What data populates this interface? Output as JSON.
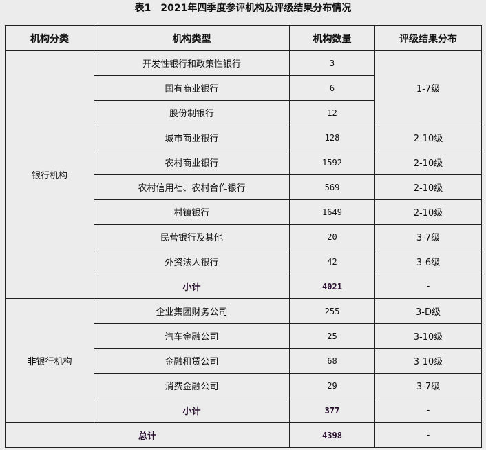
{
  "title": "表1　2021年四季度参评机构及评级结果分布情况",
  "headers": [
    "机构分类",
    "机构类型",
    "机构数量",
    "评级结果分布"
  ],
  "bank": {
    "category": "银行机构",
    "rows": [
      {
        "type": "开发性银行和政策性银行",
        "count": "3"
      },
      {
        "type": "国有商业银行",
        "count": "6"
      },
      {
        "type": "股份制银行",
        "count": "12"
      },
      {
        "type": "城市商业银行",
        "count": "128",
        "rating": "2-10级"
      },
      {
        "type": "农村商业银行",
        "count": "1592",
        "rating": "2-10级"
      },
      {
        "type": "农村信用社、农村合作银行",
        "count": "569",
        "rating": "2-10级"
      },
      {
        "type": "村镇银行",
        "count": "1649",
        "rating": "2-10级"
      },
      {
        "type": "民营银行及其他",
        "count": "20",
        "rating": "3-7级"
      },
      {
        "type": "外资法人银行",
        "count": "42",
        "rating": "3-6级"
      }
    ],
    "merged_rating": "1-7级",
    "subtotal_label": "小计",
    "subtotal_count": "4021",
    "subtotal_rating": "-"
  },
  "nonbank": {
    "category": "非银行机构",
    "rows": [
      {
        "type": "企业集团财务公司",
        "count": "255",
        "rating": "3-D级"
      },
      {
        "type": "汽车金融公司",
        "count": "25",
        "rating": "3-10级"
      },
      {
        "type": "金融租赁公司",
        "count": "68",
        "rating": "3-10级"
      },
      {
        "type": "消费金融公司",
        "count": "29",
        "rating": "3-7级"
      }
    ],
    "subtotal_label": "小计",
    "subtotal_count": "377",
    "subtotal_rating": "-"
  },
  "total": {
    "label": "总计",
    "count": "4398",
    "rating": "-"
  }
}
